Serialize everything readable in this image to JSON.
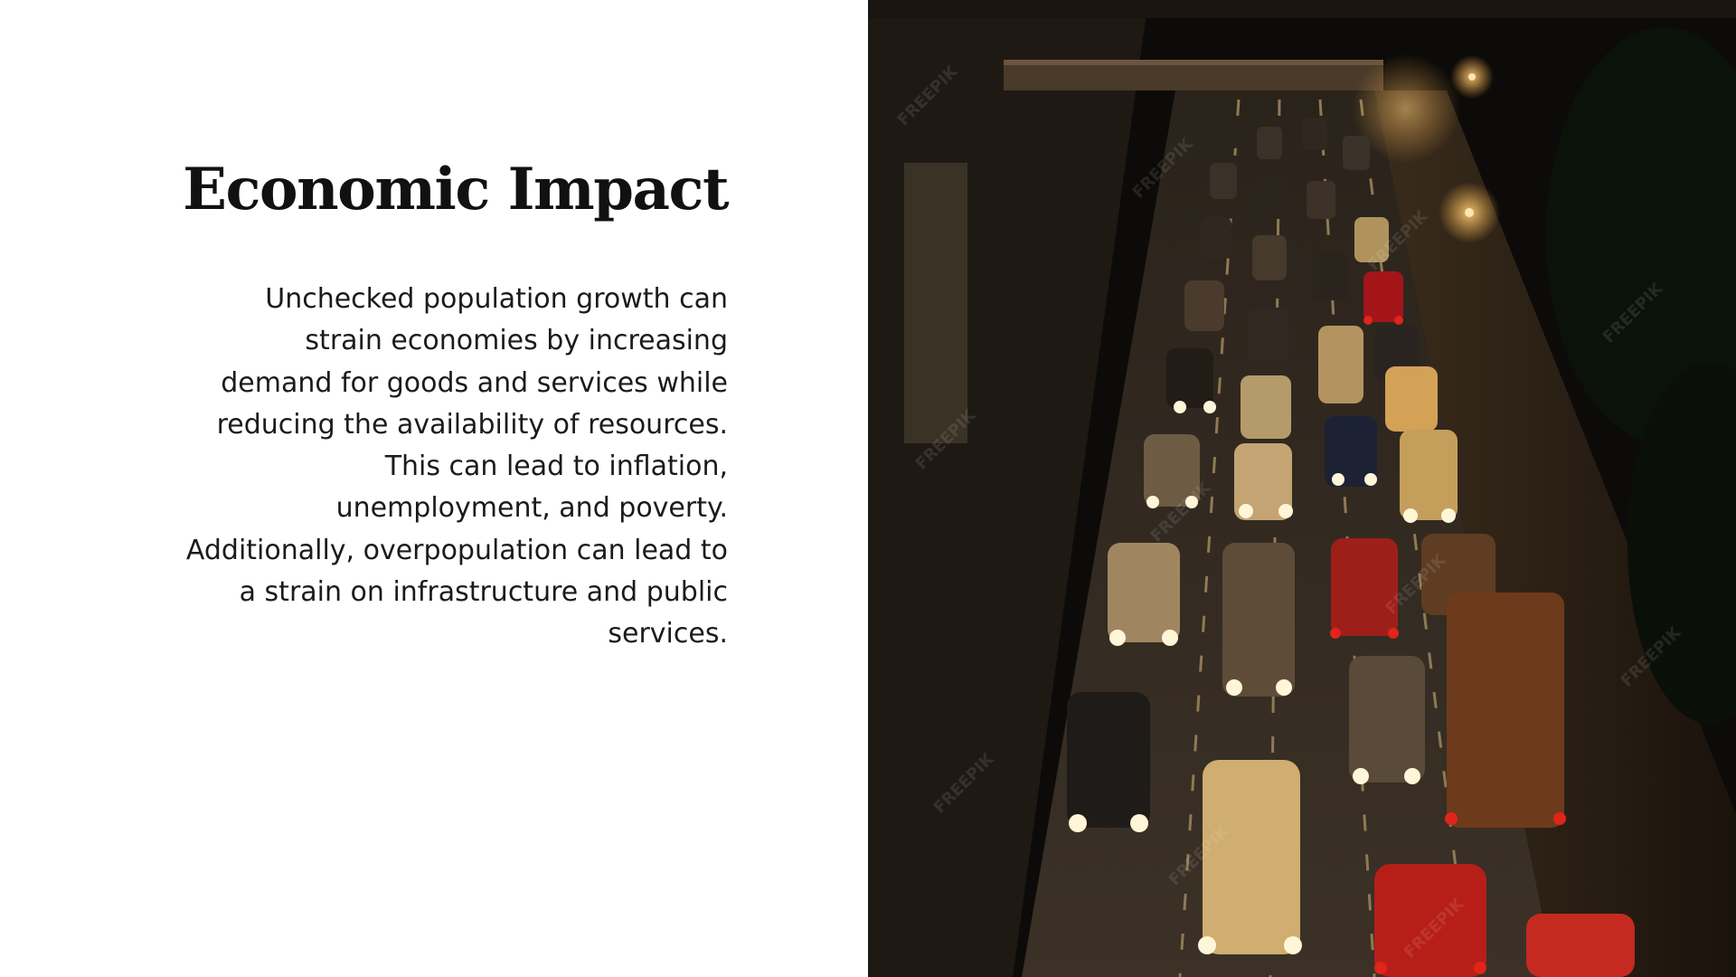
{
  "slide": {
    "title": "Economic Impact",
    "body_lines": [
      "Unchecked population growth can",
      "strain economies by increasing",
      "demand for goods and services while",
      "reducing the availability of resources.",
      "This can lead to inflation,",
      "unemployment, and poverty.",
      "Additionally, overpopulation can lead to",
      "a strain on infrastructure and public",
      "services."
    ],
    "photo_watermark": "FREEPIK"
  },
  "colors": {
    "background": "#ffffff",
    "text": "#1b1b1b",
    "title": "#111111",
    "photo_dark": "#0c0a08",
    "headlight": "#fff6d8",
    "taillight": "#e0241a",
    "street_light": "#ffb347"
  }
}
